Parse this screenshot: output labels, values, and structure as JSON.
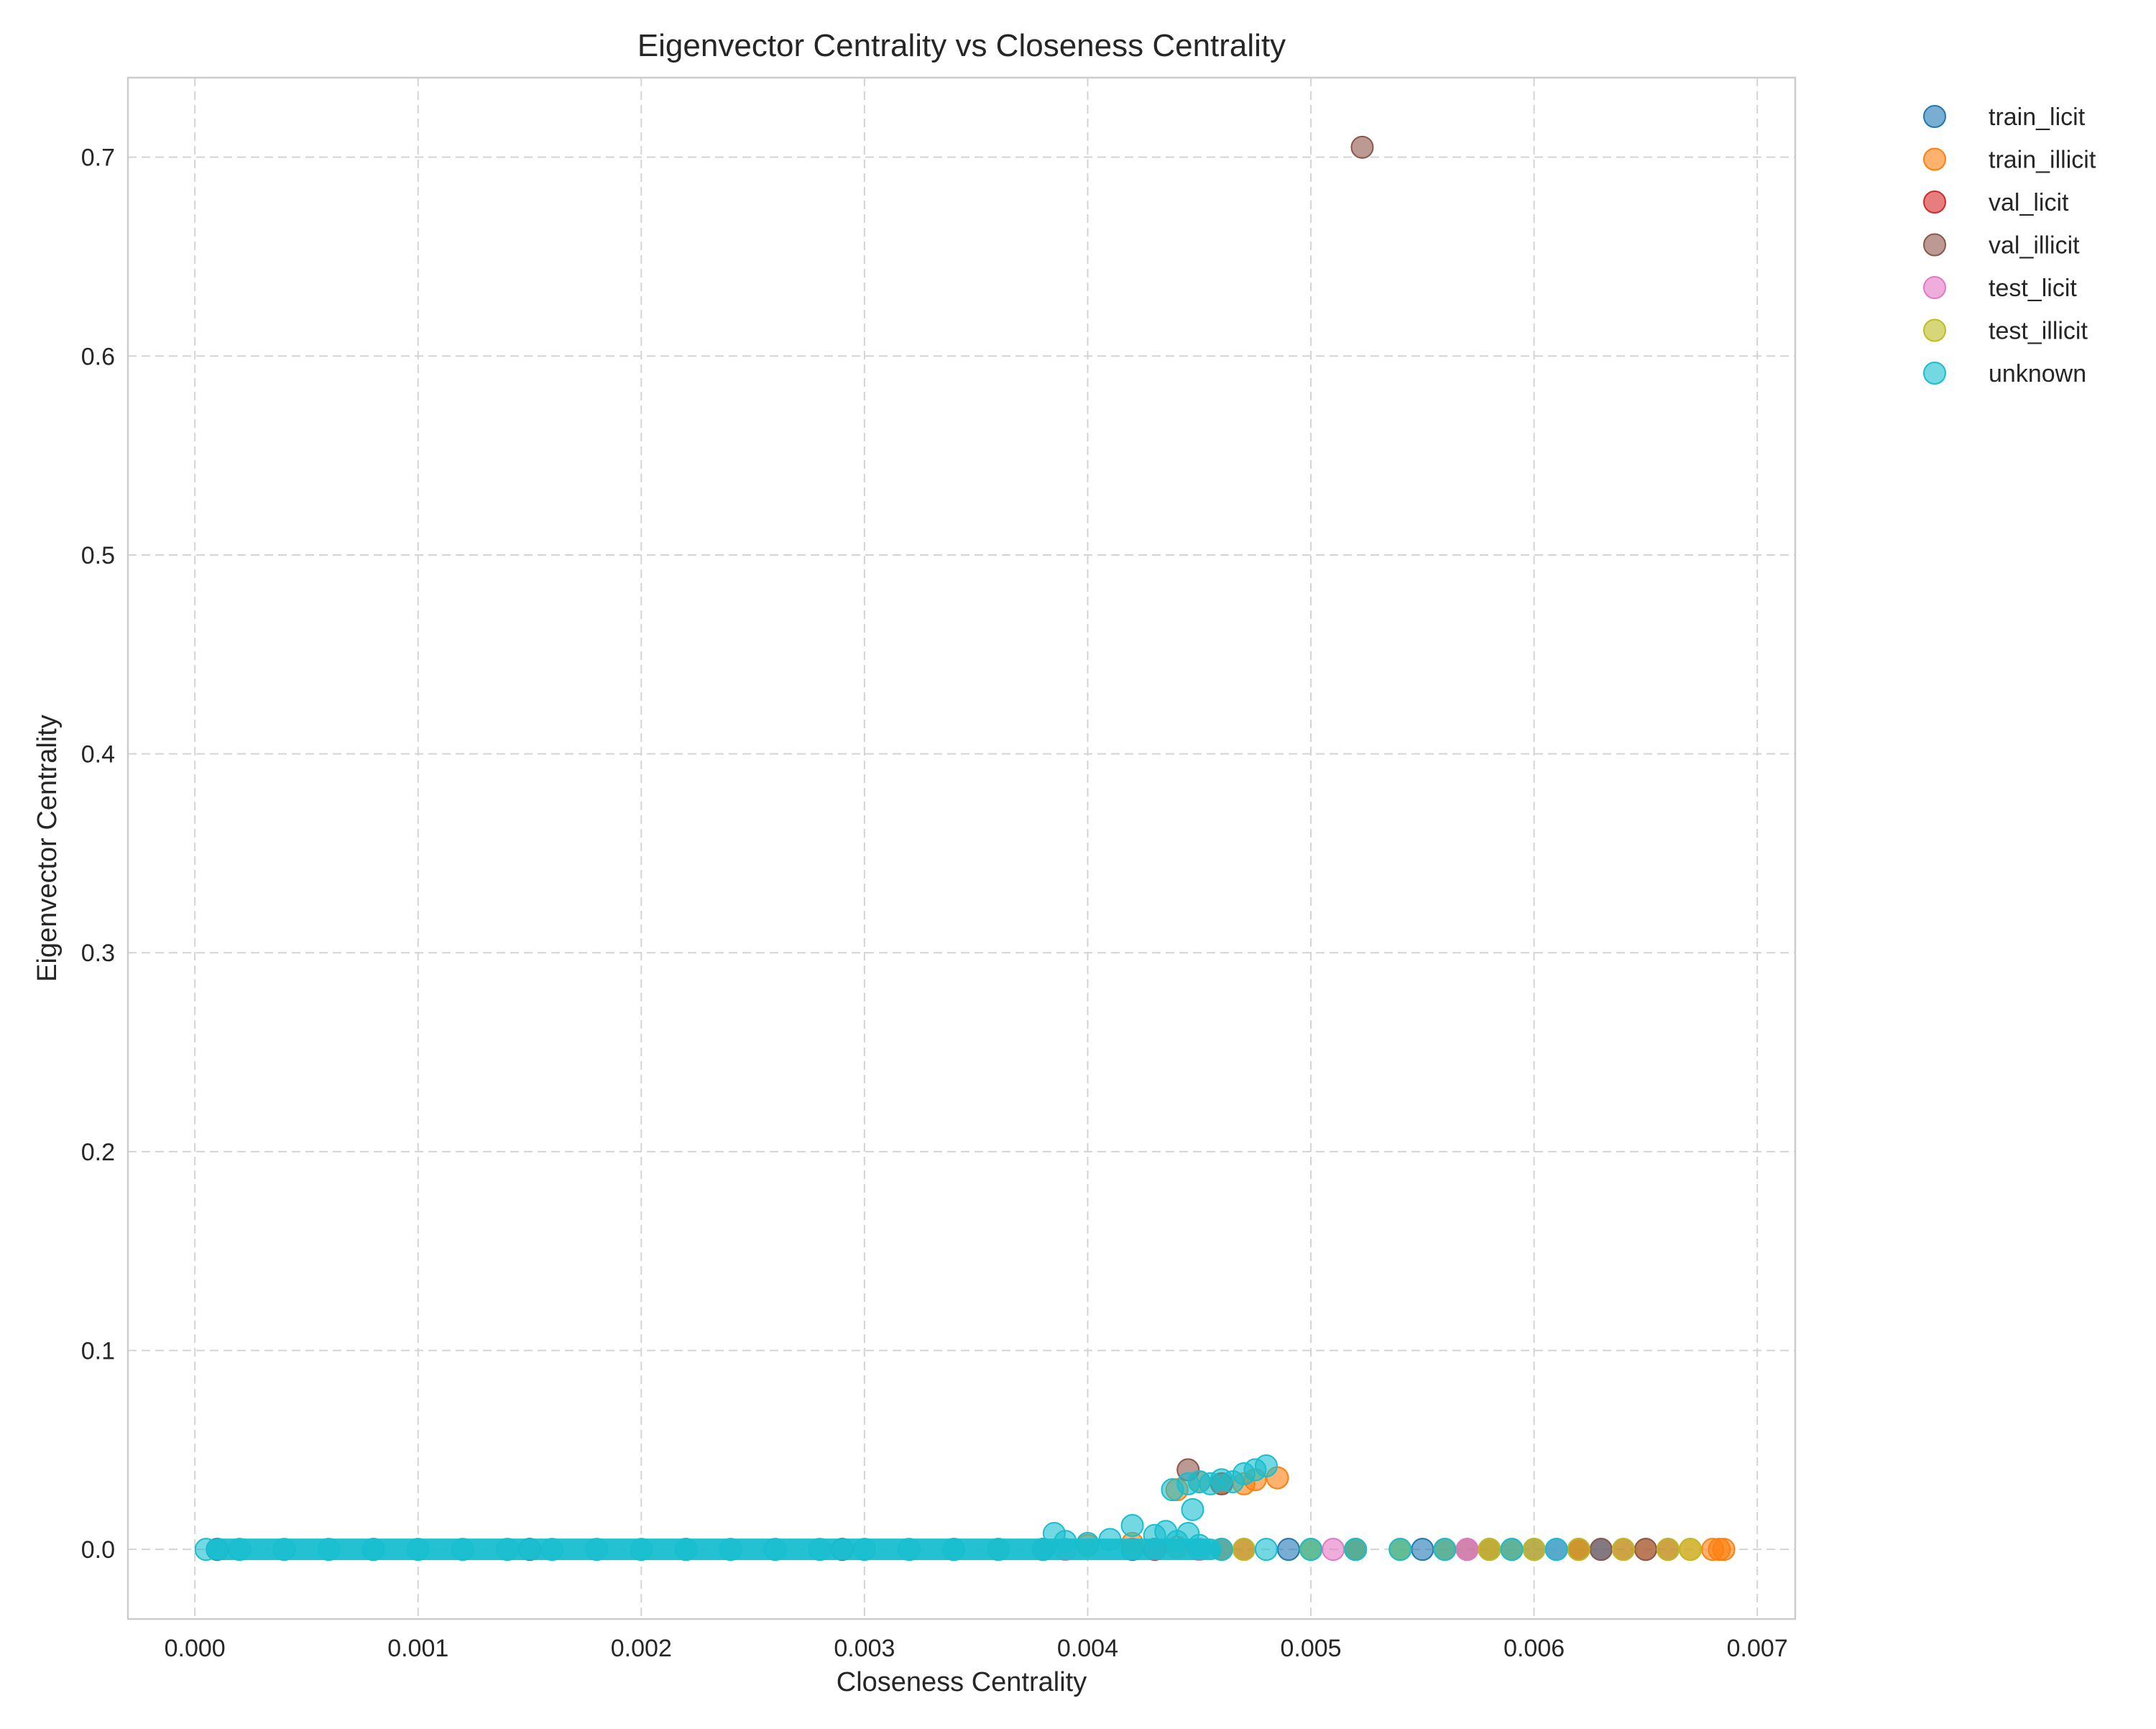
{
  "chart_data": {
    "type": "scatter",
    "title": "Eigenvector Centrality vs Closeness Centrality",
    "xlabel": "Closeness Centrality",
    "ylabel": "Eigenvector Centrality",
    "xlim": [
      -0.0003,
      0.00717
    ],
    "ylim": [
      -0.035,
      0.74
    ],
    "x_ticks": [
      0.0,
      0.001,
      0.002,
      0.003,
      0.004,
      0.005,
      0.006,
      0.007
    ],
    "x_tick_labels": [
      "0.000",
      "0.001",
      "0.002",
      "0.003",
      "0.004",
      "0.005",
      "0.006",
      "0.007"
    ],
    "y_ticks": [
      0.0,
      0.1,
      0.2,
      0.3,
      0.4,
      0.5,
      0.6,
      0.7
    ],
    "y_tick_labels": [
      "0.0",
      "0.1",
      "0.2",
      "0.3",
      "0.4",
      "0.5",
      "0.6",
      "0.7"
    ],
    "grid": true,
    "legend_position": "outside top-right",
    "series": [
      {
        "name": "train_licit",
        "color": "#1f77b4",
        "points": [
          [
            0.0001,
            0
          ],
          [
            0.0008,
            0
          ],
          [
            0.0015,
            0
          ],
          [
            0.0022,
            0
          ],
          [
            0.0029,
            0
          ],
          [
            0.0034,
            0
          ],
          [
            0.0038,
            0
          ],
          [
            0.0042,
            0
          ],
          [
            0.0046,
            0
          ],
          [
            0.0049,
            0
          ],
          [
            0.0052,
            0
          ],
          [
            0.0055,
            0
          ],
          [
            0.0058,
            0
          ],
          [
            0.0061,
            0
          ],
          [
            0.0063,
            0
          ]
        ]
      },
      {
        "name": "train_illicit",
        "color": "#ff7f0e",
        "points": [
          [
            0.0036,
            0
          ],
          [
            0.004,
            0.002
          ],
          [
            0.0042,
            0.003
          ],
          [
            0.0044,
            0.001
          ],
          [
            0.0046,
            0
          ],
          [
            0.005,
            0
          ],
          [
            0.0054,
            0
          ],
          [
            0.0058,
            0
          ],
          [
            0.0062,
            0
          ],
          [
            0.0065,
            0
          ],
          [
            0.0067,
            0
          ],
          [
            0.0068,
            0
          ],
          [
            0.00683,
            0
          ],
          [
            0.00685,
            0
          ],
          [
            0.0045,
            0.034
          ],
          [
            0.0046,
            0.033
          ],
          [
            0.0047,
            0.033
          ],
          [
            0.00475,
            0.035
          ],
          [
            0.00485,
            0.036
          ],
          [
            0.0044,
            0.03
          ]
        ]
      },
      {
        "name": "val_licit",
        "color": "#d62728",
        "points": [
          [
            0.0038,
            0
          ],
          [
            0.0043,
            0
          ],
          [
            0.0047,
            0
          ],
          [
            0.0052,
            0
          ],
          [
            0.0056,
            0
          ],
          [
            0.0059,
            0
          ],
          [
            0.0062,
            0
          ],
          [
            0.0064,
            0
          ],
          [
            0.0066,
            0
          ]
        ]
      },
      {
        "name": "val_illicit",
        "color": "#8c564b",
        "points": [
          [
            0.00523,
            0.705
          ],
          [
            0.00445,
            0.04
          ],
          [
            0.0046,
            0.033
          ],
          [
            0.0057,
            0
          ],
          [
            0.006,
            0
          ],
          [
            0.0063,
            0
          ],
          [
            0.0065,
            0
          ]
        ]
      },
      {
        "name": "test_licit",
        "color": "#e377c2",
        "points": [
          [
            0.0039,
            0
          ],
          [
            0.0045,
            0
          ],
          [
            0.0051,
            0
          ],
          [
            0.0057,
            0
          ],
          [
            0.0061,
            0
          ]
        ]
      },
      {
        "name": "test_illicit",
        "color": "#bcbd22",
        "points": [
          [
            0.0047,
            0
          ],
          [
            0.005,
            0
          ],
          [
            0.0052,
            0
          ],
          [
            0.0054,
            0
          ],
          [
            0.0056,
            0
          ],
          [
            0.0058,
            0
          ],
          [
            0.0059,
            0
          ],
          [
            0.006,
            0
          ],
          [
            0.0062,
            0
          ],
          [
            0.0064,
            0
          ],
          [
            0.0066,
            0
          ],
          [
            0.0067,
            0
          ]
        ]
      },
      {
        "name": "unknown",
        "color": "#17becf",
        "points": [
          [
            5e-05,
            0
          ],
          [
            0.0002,
            0
          ],
          [
            0.0004,
            0
          ],
          [
            0.0006,
            0
          ],
          [
            0.0008,
            0
          ],
          [
            0.001,
            0
          ],
          [
            0.0012,
            0
          ],
          [
            0.0014,
            0
          ],
          [
            0.0016,
            0
          ],
          [
            0.0018,
            0
          ],
          [
            0.002,
            0
          ],
          [
            0.0022,
            0
          ],
          [
            0.0024,
            0
          ],
          [
            0.0026,
            0
          ],
          [
            0.0028,
            0
          ],
          [
            0.003,
            0
          ],
          [
            0.0032,
            0
          ],
          [
            0.0034,
            0
          ],
          [
            0.0036,
            0
          ],
          [
            0.0038,
            0
          ],
          [
            0.00385,
            0.008
          ],
          [
            0.0039,
            0.004
          ],
          [
            0.004,
            0.003
          ],
          [
            0.0041,
            0.005
          ],
          [
            0.0042,
            0.012
          ],
          [
            0.0043,
            0.007
          ],
          [
            0.00435,
            0.009
          ],
          [
            0.0044,
            0.004
          ],
          [
            0.00445,
            0.008
          ],
          [
            0.0045,
            0.002
          ],
          [
            0.0046,
            0
          ],
          [
            0.0048,
            0
          ],
          [
            0.005,
            0
          ],
          [
            0.0052,
            0
          ],
          [
            0.0054,
            0
          ],
          [
            0.0056,
            0
          ],
          [
            0.0059,
            0
          ],
          [
            0.0061,
            0
          ],
          [
            0.00438,
            0.03
          ],
          [
            0.00445,
            0.033
          ],
          [
            0.0045,
            0.034
          ],
          [
            0.00455,
            0.033
          ],
          [
            0.0046,
            0.035
          ],
          [
            0.00465,
            0.034
          ],
          [
            0.0047,
            0.038
          ],
          [
            0.00475,
            0.04
          ],
          [
            0.0048,
            0.042
          ],
          [
            0.00447,
            0.02
          ]
        ]
      }
    ]
  }
}
